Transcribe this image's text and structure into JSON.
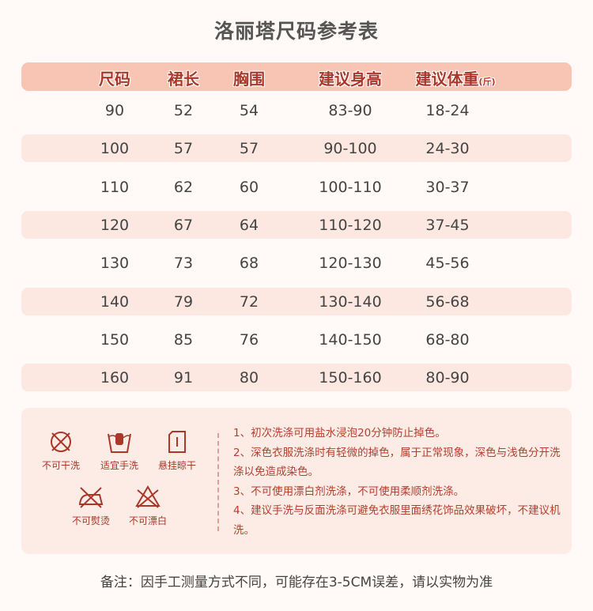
{
  "title": "洛丽塔尺码参考表",
  "table": {
    "headers": [
      "尺码",
      "裙长",
      "胸围",
      "建议身高",
      "建议体重"
    ],
    "weight_unit": "(斤)",
    "rows": [
      [
        "90",
        "52",
        "54",
        "83-90",
        "18-24"
      ],
      [
        "100",
        "57",
        "57",
        "90-100",
        "24-30"
      ],
      [
        "110",
        "62",
        "60",
        "100-110",
        "30-37"
      ],
      [
        "120",
        "67",
        "64",
        "110-120",
        "37-45"
      ],
      [
        "130",
        "73",
        "68",
        "120-130",
        "45-56"
      ],
      [
        "140",
        "79",
        "72",
        "130-140",
        "56-68"
      ],
      [
        "150",
        "85",
        "76",
        "140-150",
        "68-80"
      ],
      [
        "160",
        "91",
        "80",
        "150-160",
        "80-90"
      ]
    ]
  },
  "care": {
    "icons": [
      {
        "icon": "no-dry-clean-icon",
        "label": "不可干洗"
      },
      {
        "icon": "hand-wash-icon",
        "label": "适宜手洗"
      },
      {
        "icon": "hang-dry-icon",
        "label": "悬挂晾干"
      },
      {
        "icon": "no-iron-icon",
        "label": "不可熨烫"
      },
      {
        "icon": "no-bleach-icon",
        "label": "不可漂白"
      }
    ],
    "notes": [
      "1、初次洗涤可用盐水浸泡20分钟防止掉色。",
      "2、深色衣服洗涤时有轻微的掉色，属于正常现象，深色与浅色分开洗涤以免造成染色。",
      "3、不可使用漂白剂洗涤，不可使用柔顺剂洗涤。",
      "4、建议手洗与反面洗涤可避免衣服里面绣花饰品效果破坏，不建议机洗。"
    ]
  },
  "footer": "备注：因手工测量方式不同，可能存在3-5CM误差，请以实物为准",
  "colors": {
    "header_bg": "#f8c4b3",
    "stripe": "#fde8e1",
    "accent": "#a9382a"
  }
}
